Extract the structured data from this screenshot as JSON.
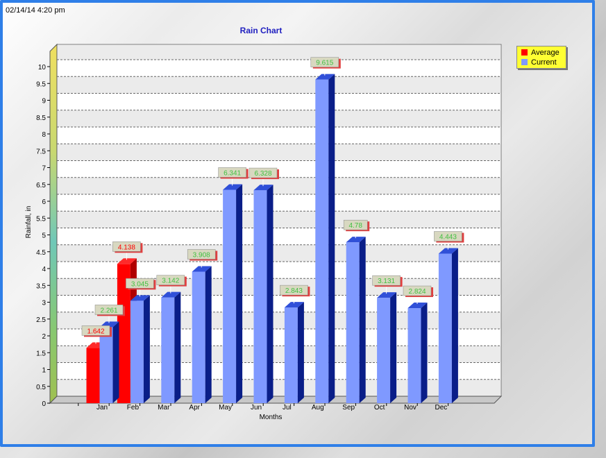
{
  "timestamp": "02/14/14 4:20 pm",
  "chart_data": {
    "type": "bar",
    "title": "Rain Chart",
    "xlabel": "Months",
    "ylabel": "Rainfall, in",
    "ylim": [
      0,
      10
    ],
    "yticks": [
      "0",
      "0.5",
      "1",
      "1.5",
      "2",
      "2.5",
      "3",
      "3.5",
      "4",
      "4.5",
      "5",
      "5.5",
      "6",
      "6.5",
      "7",
      "7.5",
      "8",
      "8.5",
      "9",
      "9.5",
      "10"
    ],
    "categories": [
      "Jan",
      "Feb",
      "Mar",
      "Apr",
      "May",
      "Jun",
      "Jul",
      "Aug",
      "Sep",
      "Oct",
      "Nov",
      "Dec"
    ],
    "legend_position": "top-right",
    "grid": true,
    "series": [
      {
        "name": "Average",
        "color": "#ff0000",
        "values": [
          1.642,
          4.138,
          null,
          null,
          null,
          null,
          null,
          null,
          null,
          null,
          null,
          null
        ],
        "labels": [
          "1.642",
          "4.138",
          "",
          "",
          "",
          "",
          "",
          "",
          "",
          "",
          "",
          ""
        ]
      },
      {
        "name": "Current",
        "color": "#7f99ff",
        "values": [
          2.261,
          3.045,
          3.142,
          3.908,
          6.341,
          6.328,
          2.843,
          9.615,
          4.78,
          3.131,
          2.824,
          4.443
        ],
        "labels": [
          "2.261",
          "3.045",
          "3.142",
          "3.908",
          "6.341",
          "6.328",
          "2.843",
          "9.615",
          "4.78",
          "3.131",
          "2.824",
          "4.443"
        ]
      }
    ]
  }
}
